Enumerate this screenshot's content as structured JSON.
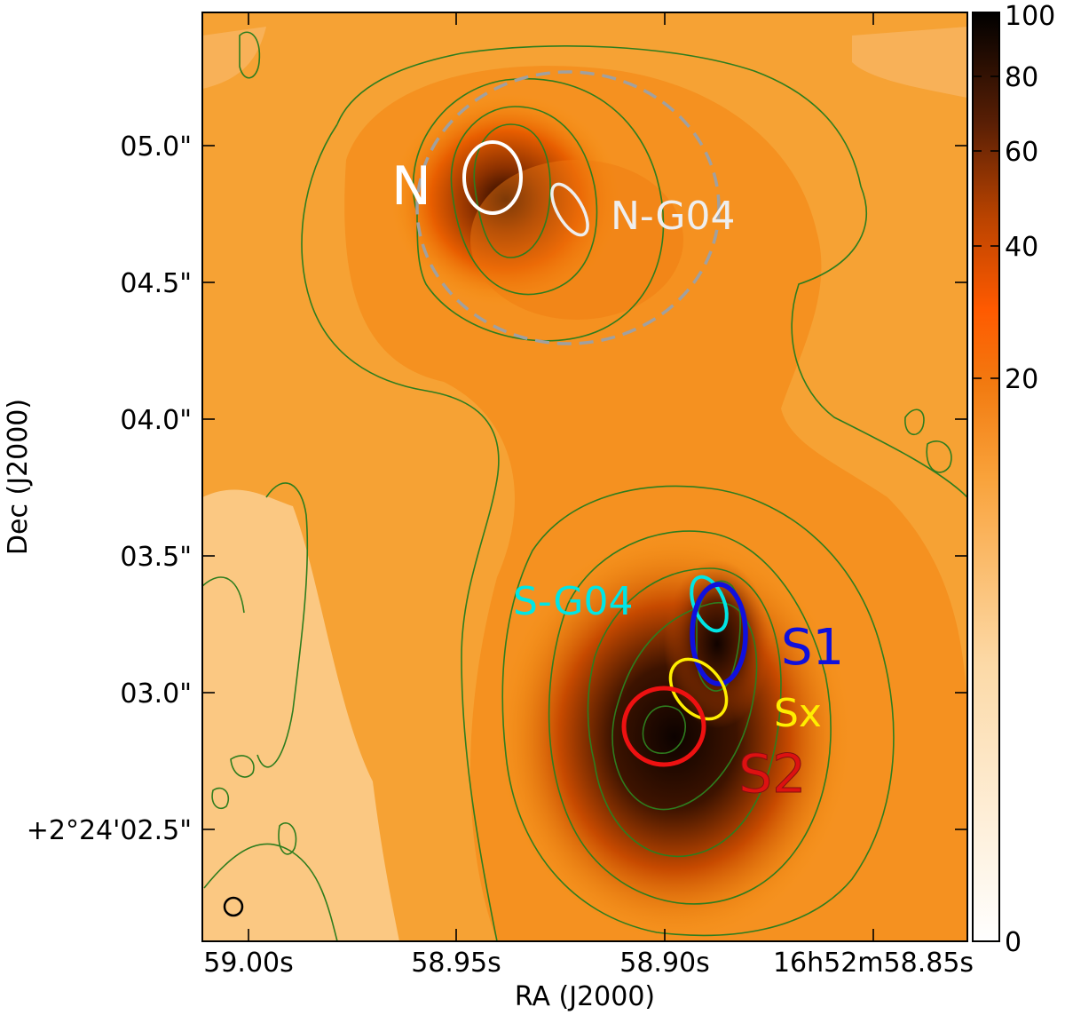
{
  "axes": {
    "xlabel": "RA (J2000)",
    "ylabel": "Dec (J2000)",
    "xticks": [
      "59.00s",
      "58.95s",
      "58.90s",
      "16h52m58.85s"
    ],
    "yticks": [
      "05.0\"",
      "04.5\"",
      "04.0\"",
      "03.5\"",
      "03.0\"",
      "+2°24'02.5\""
    ]
  },
  "colorbar": {
    "ticks": [
      "100",
      "80",
      "60",
      "40",
      "20",
      "0"
    ],
    "colors": [
      "#ffffff",
      "#fcd9a6",
      "#f9a23a",
      "#f27a10",
      "#e65c00",
      "#b94300",
      "#6b2305",
      "#000000"
    ]
  },
  "labels": {
    "n": "N",
    "n_g04": "N-G04",
    "s_g04": "S-G04",
    "s1": "S1",
    "sx": "Sx",
    "s2": "S2"
  },
  "colors": {
    "n": "#ffffff",
    "n_g04": "#eeeeee",
    "s_g04": "#00e5e5",
    "s1": "#1010dd",
    "sx": "#ffee00",
    "s2": "#dd1111",
    "contour": "#2e7d1e"
  }
}
